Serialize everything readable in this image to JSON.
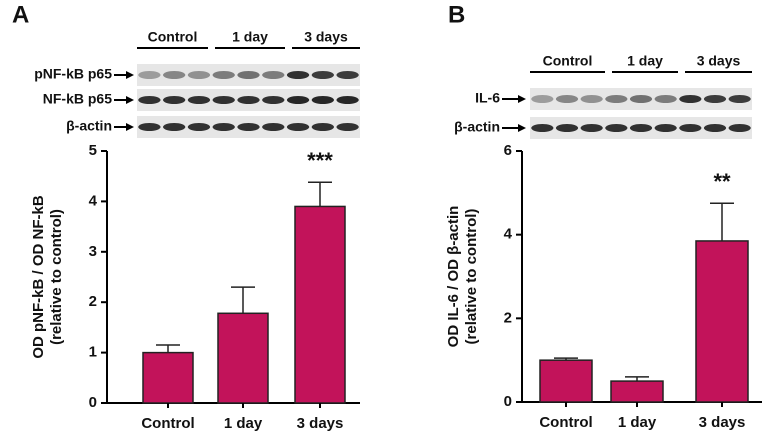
{
  "chart_data": [
    {
      "type": "bar",
      "panel": "A",
      "ylabel": [
        "OD pNF-kB / OD NF-kB",
        "(relative to control)"
      ],
      "categories": [
        "Control",
        "1 day",
        "3 days"
      ],
      "values": [
        1.0,
        1.78,
        3.9
      ],
      "errors": [
        0.15,
        0.52,
        0.48
      ],
      "value_annotations": [
        null,
        null,
        "***"
      ],
      "color": "#c2135a",
      "ylim": [
        0,
        5
      ],
      "yticks": [
        0,
        1,
        2,
        3,
        4,
        5
      ],
      "blot": {
        "groups": [
          "Control",
          "1 day",
          "3 days"
        ],
        "rows": [
          "pNF-kB p65",
          "NF-kB p65",
          "β-actin"
        ]
      }
    },
    {
      "type": "bar",
      "panel": "B",
      "ylabel": [
        "OD IL-6 / OD β-actin",
        "(relative to control)"
      ],
      "categories": [
        "Control",
        "1 day",
        "3 days"
      ],
      "values": [
        1.0,
        0.5,
        3.85
      ],
      "errors": [
        0.05,
        0.1,
        0.9
      ],
      "value_annotations": [
        null,
        null,
        "**"
      ],
      "color": "#c2135a",
      "ylim": [
        0,
        6
      ],
      "yticks": [
        0,
        2,
        4,
        6
      ],
      "blot": {
        "groups": [
          "Control",
          "1 day",
          "3 days"
        ],
        "rows": [
          "IL-6",
          "β-actin"
        ]
      }
    }
  ]
}
